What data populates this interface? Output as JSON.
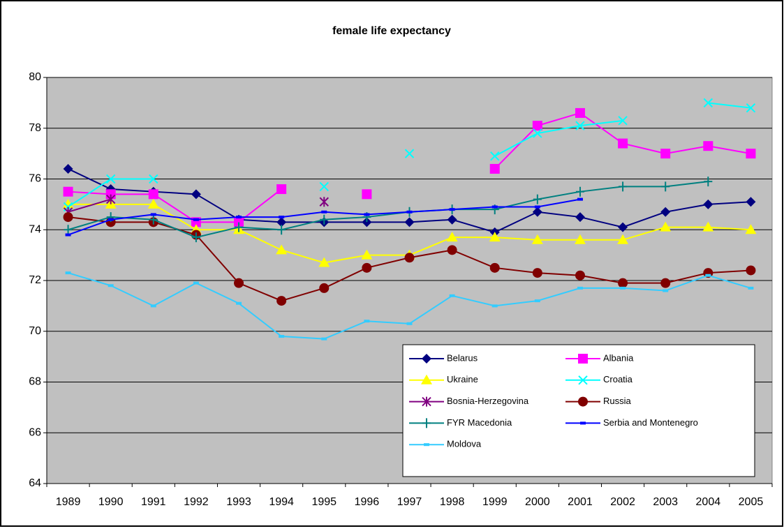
{
  "chart_data": {
    "type": "line",
    "title": "female life expectancy",
    "categories": [
      "1989",
      "1990",
      "1991",
      "1992",
      "1993",
      "1994",
      "1995",
      "1996",
      "1997",
      "1998",
      "1999",
      "2000",
      "2001",
      "2002",
      "2003",
      "2004",
      "2005"
    ],
    "ylim": [
      64,
      80
    ],
    "yticks": [
      64,
      66,
      68,
      70,
      72,
      74,
      76,
      78,
      80
    ],
    "grid": true,
    "plot_background": "#c0c0c0",
    "legend": "bottom-right",
    "series": [
      {
        "name": "Belarus",
        "color": "#000080",
        "marker": "diamond",
        "values": [
          76.4,
          75.6,
          75.5,
          75.4,
          74.4,
          74.3,
          74.3,
          74.3,
          74.3,
          74.4,
          73.9,
          74.7,
          74.5,
          74.1,
          74.7,
          75.0,
          75.1
        ]
      },
      {
        "name": "Albania",
        "color": "#ff00ff",
        "marker": "square",
        "values": [
          75.5,
          75.4,
          75.4,
          74.3,
          74.3,
          75.6,
          null,
          75.4,
          null,
          null,
          76.4,
          78.1,
          78.6,
          77.4,
          77.0,
          77.3,
          77.0
        ]
      },
      {
        "name": "Ukraine",
        "color": "#ffff00",
        "marker": "triangle",
        "values": [
          75.0,
          75.0,
          75.0,
          74.0,
          74.0,
          73.2,
          72.7,
          73.0,
          73.0,
          73.7,
          73.7,
          73.6,
          73.6,
          73.6,
          74.1,
          74.1,
          74.0
        ]
      },
      {
        "name": "Croatia",
        "color": "#00ffff",
        "marker": "x",
        "values": [
          74.9,
          76.0,
          76.0,
          null,
          null,
          null,
          75.7,
          null,
          77.0,
          null,
          76.9,
          77.8,
          78.1,
          78.3,
          null,
          79.0,
          78.8
        ]
      },
      {
        "name": "Bosnia-Herzegovina",
        "color": "#800080",
        "marker": "star",
        "values": [
          74.7,
          75.2,
          null,
          null,
          null,
          null,
          75.1,
          null,
          null,
          null,
          null,
          null,
          null,
          null,
          null,
          null,
          null
        ]
      },
      {
        "name": "Russia",
        "color": "#800000",
        "marker": "circle",
        "values": [
          74.5,
          74.3,
          74.3,
          73.8,
          71.9,
          71.2,
          71.7,
          72.5,
          72.9,
          73.2,
          72.5,
          72.3,
          72.2,
          71.9,
          71.9,
          72.3,
          72.4
        ]
      },
      {
        "name": "FYR Macedonia",
        "color": "#008080",
        "marker": "plus",
        "values": [
          74.0,
          74.5,
          74.4,
          73.7,
          74.1,
          74.0,
          74.4,
          74.5,
          74.7,
          74.8,
          74.8,
          75.2,
          75.5,
          75.7,
          75.7,
          75.9,
          null
        ]
      },
      {
        "name": "Serbia and Montenegro",
        "color": "#0000ff",
        "marker": "dash",
        "values": [
          73.8,
          74.4,
          74.6,
          74.4,
          74.5,
          74.5,
          74.7,
          74.6,
          74.7,
          74.8,
          74.9,
          74.9,
          75.2,
          null,
          null,
          null,
          null
        ]
      },
      {
        "name": "Moldova",
        "color": "#33ccff",
        "marker": "dash",
        "values": [
          72.3,
          71.8,
          71.0,
          71.9,
          71.1,
          69.8,
          69.7,
          70.4,
          70.3,
          71.4,
          71.0,
          71.2,
          71.7,
          71.7,
          71.6,
          72.2,
          71.7
        ]
      }
    ]
  }
}
